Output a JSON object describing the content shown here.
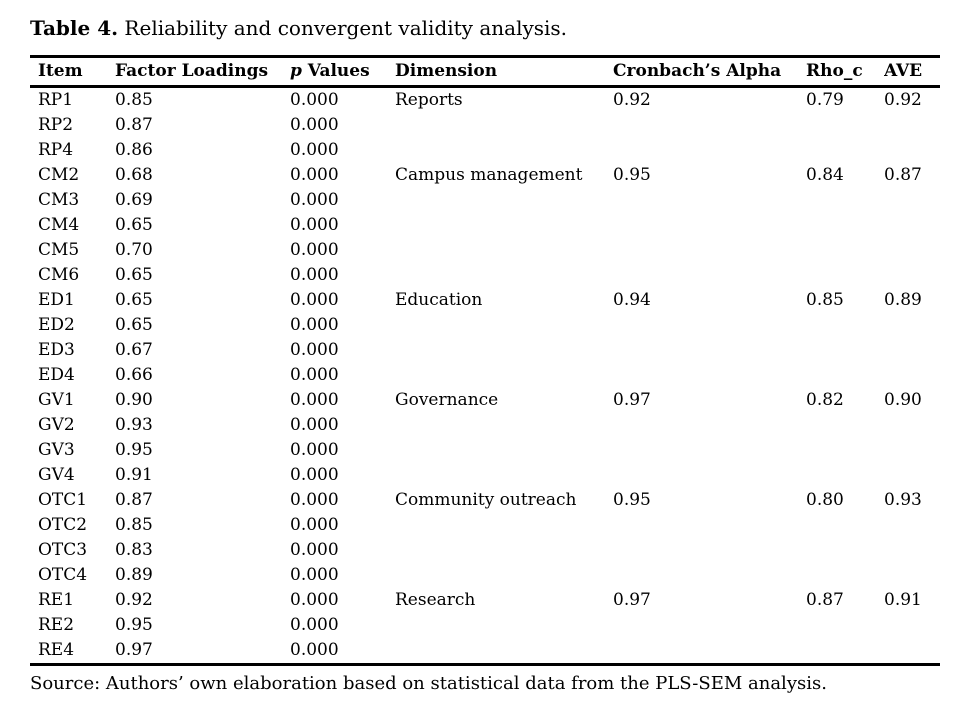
{
  "title": {
    "label": "Table 4.",
    "text": " Reliability and convergent validity analysis."
  },
  "colors": {
    "text": "#000000",
    "background": "#ffffff",
    "rule": "#000000"
  },
  "table": {
    "columns": [
      "Item",
      "Factor Loadings",
      "p Values",
      "Dimension",
      "Cronbach’s Alpha",
      "Rho_c",
      "AVE"
    ],
    "p_header": {
      "italic": "p",
      "rest": " Values"
    },
    "rows": [
      {
        "item": "RP1",
        "factor_loading": "0.85",
        "p_value": "0.000",
        "dimension": "Reports",
        "cronbachs_alpha": "0.92",
        "rho_c": "0.79",
        "ave": "0.92"
      },
      {
        "item": "RP2",
        "factor_loading": "0.87",
        "p_value": "0.000",
        "dimension": "",
        "cronbachs_alpha": "",
        "rho_c": "",
        "ave": ""
      },
      {
        "item": "RP4",
        "factor_loading": "0.86",
        "p_value": "0.000",
        "dimension": "",
        "cronbachs_alpha": "",
        "rho_c": "",
        "ave": ""
      },
      {
        "item": "CM2",
        "factor_loading": "0.68",
        "p_value": "0.000",
        "dimension": "Campus management",
        "cronbachs_alpha": "0.95",
        "rho_c": "0.84",
        "ave": "0.87"
      },
      {
        "item": "CM3",
        "factor_loading": "0.69",
        "p_value": "0.000",
        "dimension": "",
        "cronbachs_alpha": "",
        "rho_c": "",
        "ave": ""
      },
      {
        "item": "CM4",
        "factor_loading": "0.65",
        "p_value": "0.000",
        "dimension": "",
        "cronbachs_alpha": "",
        "rho_c": "",
        "ave": ""
      },
      {
        "item": "CM5",
        "factor_loading": "0.70",
        "p_value": "0.000",
        "dimension": "",
        "cronbachs_alpha": "",
        "rho_c": "",
        "ave": ""
      },
      {
        "item": "CM6",
        "factor_loading": "0.65",
        "p_value": "0.000",
        "dimension": "",
        "cronbachs_alpha": "",
        "rho_c": "",
        "ave": ""
      },
      {
        "item": "ED1",
        "factor_loading": "0.65",
        "p_value": "0.000",
        "dimension": "Education",
        "cronbachs_alpha": "0.94",
        "rho_c": "0.85",
        "ave": "0.89"
      },
      {
        "item": "ED2",
        "factor_loading": "0.65",
        "p_value": "0.000",
        "dimension": "",
        "cronbachs_alpha": "",
        "rho_c": "",
        "ave": ""
      },
      {
        "item": "ED3",
        "factor_loading": "0.67",
        "p_value": "0.000",
        "dimension": "",
        "cronbachs_alpha": "",
        "rho_c": "",
        "ave": ""
      },
      {
        "item": "ED4",
        "factor_loading": "0.66",
        "p_value": "0.000",
        "dimension": "",
        "cronbachs_alpha": "",
        "rho_c": "",
        "ave": ""
      },
      {
        "item": "GV1",
        "factor_loading": "0.90",
        "p_value": "0.000",
        "dimension": "Governance",
        "cronbachs_alpha": "0.97",
        "rho_c": "0.82",
        "ave": "0.90"
      },
      {
        "item": "GV2",
        "factor_loading": "0.93",
        "p_value": "0.000",
        "dimension": "",
        "cronbachs_alpha": "",
        "rho_c": "",
        "ave": ""
      },
      {
        "item": "GV3",
        "factor_loading": "0.95",
        "p_value": "0.000",
        "dimension": "",
        "cronbachs_alpha": "",
        "rho_c": "",
        "ave": ""
      },
      {
        "item": "GV4",
        "factor_loading": "0.91",
        "p_value": "0.000",
        "dimension": "",
        "cronbachs_alpha": "",
        "rho_c": "",
        "ave": ""
      },
      {
        "item": "OTC1",
        "factor_loading": "0.87",
        "p_value": "0.000",
        "dimension": "Community outreach",
        "cronbachs_alpha": "0.95",
        "rho_c": "0.80",
        "ave": "0.93"
      },
      {
        "item": "OTC2",
        "factor_loading": "0.85",
        "p_value": "0.000",
        "dimension": "",
        "cronbachs_alpha": "",
        "rho_c": "",
        "ave": ""
      },
      {
        "item": "OTC3",
        "factor_loading": "0.83",
        "p_value": "0.000",
        "dimension": "",
        "cronbachs_alpha": "",
        "rho_c": "",
        "ave": ""
      },
      {
        "item": "OTC4",
        "factor_loading": "0.89",
        "p_value": "0.000",
        "dimension": "",
        "cronbachs_alpha": "",
        "rho_c": "",
        "ave": ""
      },
      {
        "item": "RE1",
        "factor_loading": "0.92",
        "p_value": "0.000",
        "dimension": "Research",
        "cronbachs_alpha": "0.97",
        "rho_c": "0.87",
        "ave": "0.91"
      },
      {
        "item": "RE2",
        "factor_loading": "0.95",
        "p_value": "0.000",
        "dimension": "",
        "cronbachs_alpha": "",
        "rho_c": "",
        "ave": ""
      },
      {
        "item": "RE4",
        "factor_loading": "0.97",
        "p_value": "0.000",
        "dimension": "",
        "cronbachs_alpha": "",
        "rho_c": "",
        "ave": ""
      }
    ]
  },
  "source_note": "Source: Authors’ own elaboration based on statistical data from the PLS-SEM analysis."
}
